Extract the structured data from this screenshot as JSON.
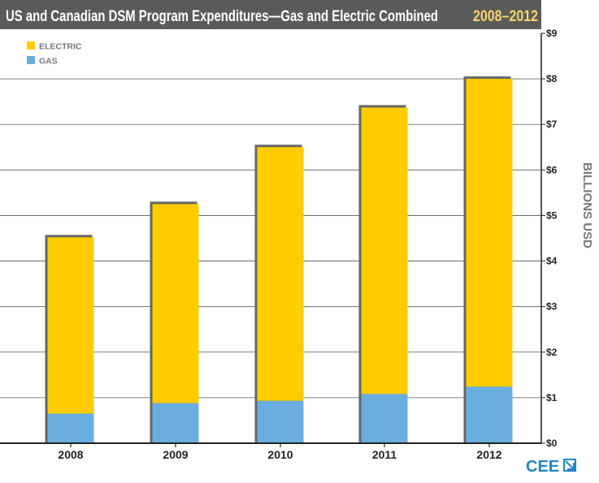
{
  "colors": {
    "electric": "#FFCC00",
    "gas": "#6AAEE0",
    "title_bg": "#5A5A5A",
    "title_text": "#FFFFFF",
    "years_text": "#F5D46A",
    "axis_text": "#222222",
    "legend_text": "#777777",
    "grid": "#555555",
    "shadow": "#666666",
    "logo_blue": "#1E88C8"
  },
  "chart_data": {
    "type": "bar",
    "stacked": true,
    "title": "US and Canadian DSM Program Expenditures—Gas and Electric Combined",
    "subtitle": "2008–2012",
    "ylabel": "BILLIONS USD",
    "xlabel": "",
    "categories": [
      "2008",
      "2009",
      "2010",
      "2011",
      "2012"
    ],
    "series": [
      {
        "name": "GAS",
        "color": "#6AAEE0",
        "values": [
          0.65,
          0.88,
          0.93,
          1.08,
          1.24
        ]
      },
      {
        "name": "ELECTRIC",
        "color": "#FFCC00",
        "values": [
          3.87,
          4.37,
          5.57,
          6.29,
          6.76
        ]
      }
    ],
    "legend": [
      "ELECTRIC",
      "GAS"
    ],
    "legend_position": "top-left",
    "ylim": [
      0,
      9
    ],
    "yticks": [
      0,
      1,
      2,
      3,
      4,
      5,
      6,
      7,
      8,
      9
    ],
    "ytick_labels": [
      "$0",
      "$1",
      "$2",
      "$3",
      "$4",
      "$5",
      "$6",
      "$7",
      "$8",
      "$9"
    ],
    "grid": true
  },
  "logo": {
    "text": "CEE"
  }
}
